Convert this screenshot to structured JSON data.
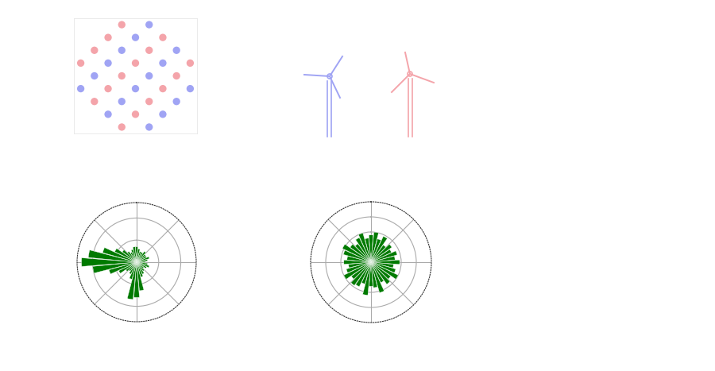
{
  "chart_data": [
    {
      "type": "scatter",
      "tick_labels": false,
      "grid": false,
      "xlim": [
        -0.5,
        8.5
      ],
      "ylim": [
        -0.5,
        8.5
      ],
      "xticks": [],
      "yticks": [],
      "marker": "o",
      "series": [
        {
          "color": "#f4a4aa",
          "x": [
            3,
            2,
            6,
            1,
            5,
            0,
            4,
            8,
            3,
            7,
            2,
            6,
            1,
            5,
            4,
            3
          ],
          "values": [
            8,
            7,
            7,
            6,
            6,
            5,
            5,
            5,
            4,
            4,
            3,
            3,
            2,
            2,
            1,
            0
          ]
        },
        {
          "color": "#a0a4f4",
          "x": [
            5,
            4,
            3,
            7,
            2,
            6,
            1,
            5,
            0,
            4,
            8,
            3,
            7,
            2,
            6,
            5
          ],
          "values": [
            8,
            7,
            6,
            6,
            5,
            5,
            4,
            4,
            3,
            3,
            3,
            2,
            2,
            1,
            1,
            0
          ]
        }
      ]
    },
    {
      "type": "polar_bar",
      "tick_labels": false,
      "grid": true,
      "color": "#007a00",
      "x": [
        0,
        10,
        20,
        30,
        40,
        50,
        60,
        70,
        80,
        90,
        100,
        110,
        120,
        130,
        140,
        150,
        160,
        170,
        180,
        190,
        200,
        210,
        220,
        230,
        240,
        250,
        260,
        270,
        280,
        290,
        300,
        310,
        320,
        330,
        340,
        350
      ],
      "values": [
        0.7,
        0.6,
        0.5,
        0.5,
        0.6,
        0.5,
        0.5,
        0.6,
        0.5,
        0.4,
        0.5,
        0.6,
        0.5,
        0.4,
        0.5,
        0.6,
        0.7,
        1.3,
        1.6,
        1.7,
        0.8,
        0.6,
        0.5,
        0.6,
        0.9,
        1.3,
        2.0,
        2.5,
        2.2,
        1.6,
        1.1,
        0.8,
        0.6,
        0.5,
        0.6,
        0.7
      ],
      "xticks": [
        0,
        45,
        90,
        135,
        180,
        225,
        270,
        315
      ],
      "ylim": [
        0,
        2.7
      ],
      "yticks": [
        1,
        2
      ]
    },
    {
      "type": "polar_bar",
      "tick_labels": false,
      "grid": true,
      "color": "#007a00",
      "x": [
        0,
        10,
        20,
        30,
        40,
        50,
        60,
        70,
        80,
        90,
        100,
        110,
        120,
        130,
        140,
        150,
        160,
        170,
        180,
        190,
        200,
        210,
        220,
        230,
        240,
        250,
        260,
        270,
        280,
        290,
        300,
        310,
        320,
        330,
        340,
        350
      ],
      "values": [
        1.8,
        2.0,
        1.6,
        1.9,
        1.4,
        1.7,
        1.5,
        1.8,
        1.6,
        1.9,
        1.5,
        1.7,
        2.0,
        1.6,
        1.8,
        1.5,
        2.1,
        1.7,
        1.6,
        2.2,
        1.5,
        1.8,
        1.9,
        1.6,
        2.0,
        1.7,
        1.5,
        1.8,
        1.6,
        1.9,
        2.1,
        1.7,
        1.5,
        1.8,
        2.0,
        1.6
      ],
      "xticks": [
        0,
        45,
        90,
        135,
        180,
        225,
        270,
        315
      ],
      "ylim": [
        0,
        4
      ],
      "yticks": [
        1,
        2,
        3
      ]
    }
  ]
}
